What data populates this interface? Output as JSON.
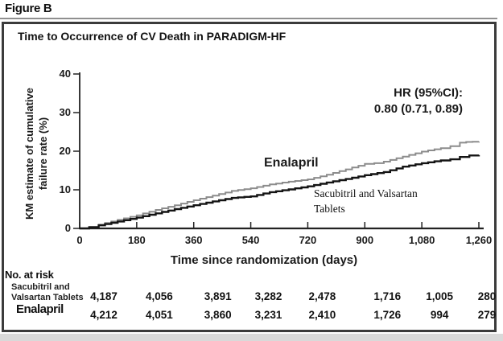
{
  "figure_label": "Figure B",
  "chart_data": {
    "type": "line",
    "subtype": "kaplan-meier-step",
    "title": "Time to Occurrence of CV Death in PARADIGM-HF",
    "xlabel": "Time since randomization (days)",
    "ylabel": "KM estimate of cumulative failure rate (%)",
    "ylabel_lines": [
      "KM estimate of cumulative",
      "failure rate (%)"
    ],
    "xlim": [
      0,
      1260
    ],
    "ylim": [
      0,
      40
    ],
    "x_ticks": [
      0,
      180,
      360,
      540,
      720,
      900,
      1080,
      1260
    ],
    "x_tick_labels": [
      "0",
      "180",
      "360",
      "540",
      "720",
      "900",
      "1,080",
      "1,260"
    ],
    "y_ticks": [
      0,
      10,
      20,
      30,
      40
    ],
    "y_tick_labels": [
      "0",
      "10",
      "20",
      "30",
      "40"
    ],
    "grid": false,
    "legend_position": "inline-labels",
    "annotation": {
      "line1": "HR (95%CI):",
      "line2": "0.80 (0.71, 0.89)"
    },
    "series": [
      {
        "name": "Enalapril",
        "color": "#8c8c8c",
        "stroke_width": 2,
        "label_lines": [
          "Enalapril"
        ],
        "points": [
          [
            0,
            0
          ],
          [
            30,
            0.4
          ],
          [
            60,
            1.0
          ],
          [
            120,
            2.2
          ],
          [
            180,
            3.4
          ],
          [
            240,
            4.8
          ],
          [
            300,
            6.0
          ],
          [
            360,
            7.3
          ],
          [
            420,
            8.5
          ],
          [
            480,
            9.7
          ],
          [
            540,
            10.4
          ],
          [
            600,
            11.4
          ],
          [
            660,
            12.1
          ],
          [
            720,
            12.7
          ],
          [
            780,
            13.9
          ],
          [
            840,
            15.3
          ],
          [
            900,
            16.7
          ],
          [
            930,
            16.9
          ],
          [
            960,
            17.3
          ],
          [
            1020,
            18.6
          ],
          [
            1080,
            19.9
          ],
          [
            1140,
            20.8
          ],
          [
            1170,
            21.3
          ],
          [
            1200,
            22.2
          ],
          [
            1220,
            22.4
          ],
          [
            1260,
            22.5
          ]
        ]
      },
      {
        "name": "Sacubitril and Valsartan Tablets",
        "color": "#141414",
        "stroke_width": 2.4,
        "label_lines": [
          "Sacubitril and Valsartan",
          "Tablets"
        ],
        "points": [
          [
            0,
            0
          ],
          [
            30,
            0.3
          ],
          [
            60,
            0.8
          ],
          [
            120,
            1.8
          ],
          [
            180,
            2.8
          ],
          [
            240,
            3.9
          ],
          [
            300,
            5.0
          ],
          [
            360,
            6.0
          ],
          [
            420,
            7.0
          ],
          [
            480,
            7.9
          ],
          [
            540,
            8.3
          ],
          [
            600,
            9.4
          ],
          [
            660,
            10.1
          ],
          [
            720,
            10.9
          ],
          [
            780,
            11.9
          ],
          [
            840,
            12.8
          ],
          [
            900,
            13.8
          ],
          [
            960,
            14.6
          ],
          [
            1020,
            16.0
          ],
          [
            1080,
            16.9
          ],
          [
            1140,
            17.6
          ],
          [
            1170,
            17.9
          ],
          [
            1200,
            18.5
          ],
          [
            1230,
            18.9
          ],
          [
            1260,
            19.0
          ]
        ]
      }
    ]
  },
  "risk_table": {
    "header": "No. at risk",
    "rows": [
      {
        "label_lines": [
          "Sacubitril and",
          "Valsartan Tablets"
        ],
        "values": [
          "4,187",
          "4,056",
          "3,891",
          "3,282",
          "2,478",
          "1,716",
          "1,005",
          "280"
        ]
      },
      {
        "label_lines": [
          "Enalapril"
        ],
        "values": [
          "4,212",
          "4,051",
          "3,860",
          "3,231",
          "2,410",
          "1,726",
          "994",
          "279"
        ]
      }
    ]
  },
  "colors": {
    "border": "#3b3b3b",
    "axis": "#222222",
    "enalapril_curve": "#8c8c8c",
    "sacubitril_curve": "#141414",
    "bottom_band": "#d9d9d9"
  }
}
